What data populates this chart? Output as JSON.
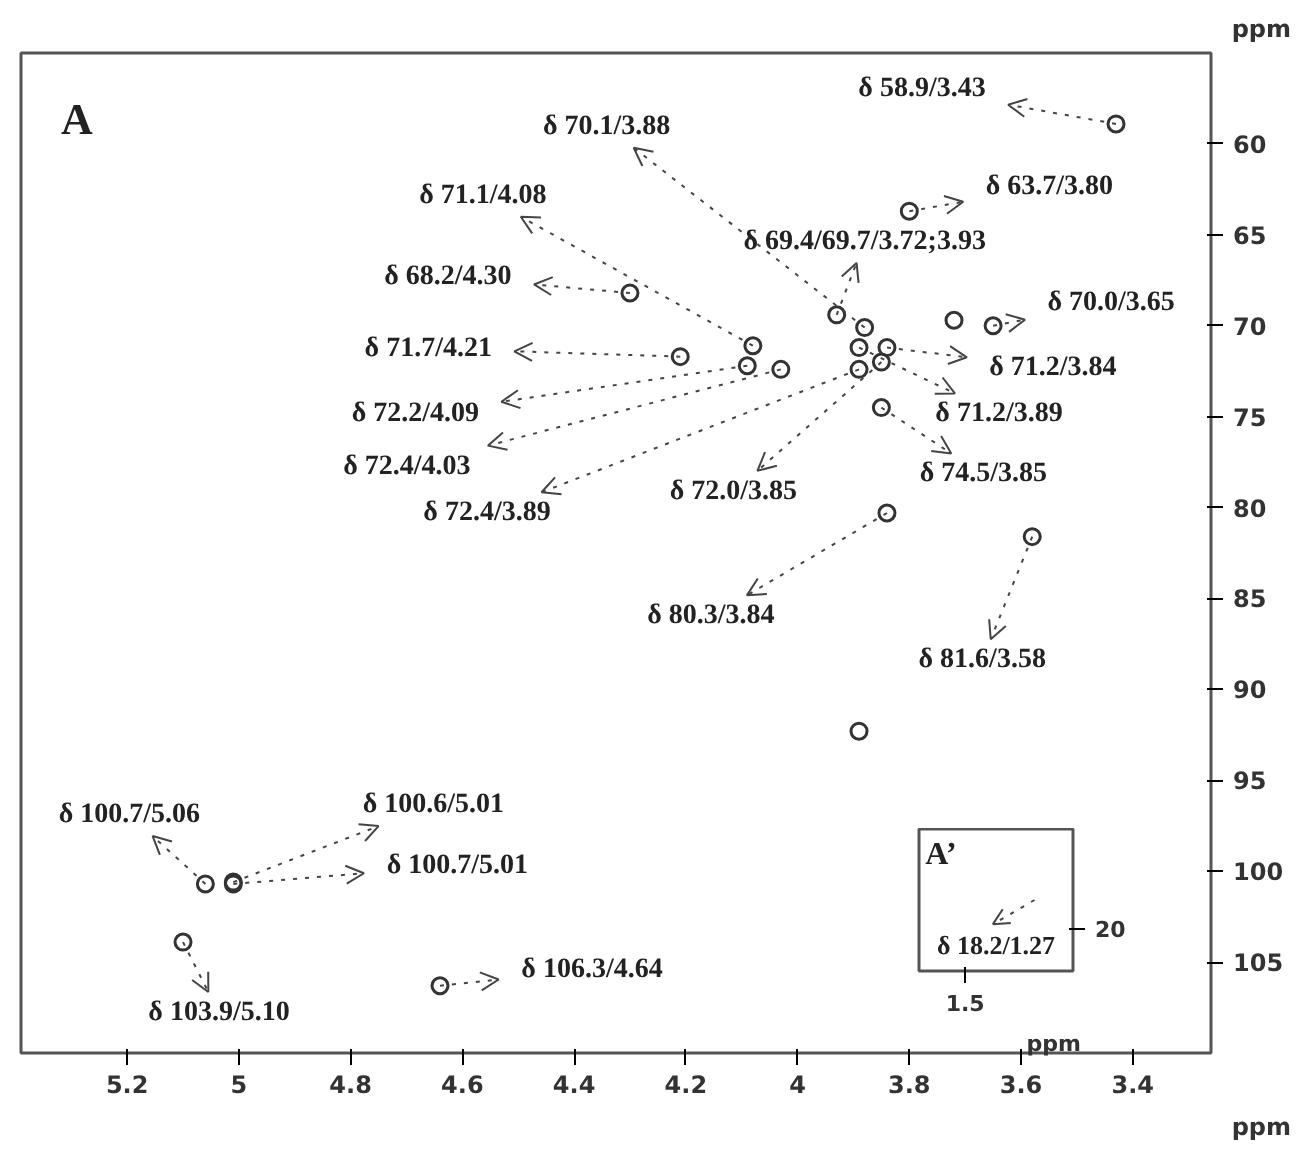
{
  "chart_data": [
    {
      "type": "scatter",
      "xlabel": "ppm",
      "ylabel": "ppm",
      "xlim": [
        5.39,
        3.26
      ],
      "ylim": [
        110,
        55
      ],
      "xticks": [
        5.2,
        5.0,
        4.8,
        4.6,
        4.4,
        4.2,
        4.0,
        3.8,
        3.6,
        3.4
      ],
      "yticks": [
        60,
        65,
        70,
        75,
        80,
        85,
        90,
        95,
        100,
        105
      ],
      "grid": false,
      "marker": "circle",
      "series": [
        {
          "color": "#333333",
          "x": [
            3.43,
            3.88,
            4.08,
            4.3,
            4.21,
            4.09,
            4.03,
            3.89,
            3.93,
            3.72,
            3.8,
            3.65,
            3.84,
            3.89,
            3.85,
            3.85,
            3.84,
            3.58,
            5.06,
            5.01,
            5.01,
            5.1,
            4.64,
            3.89
          ],
          "values": [
            58.9,
            70.1,
            71.1,
            68.2,
            71.7,
            72.2,
            72.4,
            72.4,
            69.4,
            69.7,
            63.7,
            70.0,
            71.2,
            71.2,
            74.5,
            72.0,
            80.3,
            81.6,
            100.7,
            100.6,
            100.7,
            103.9,
            106.3,
            92.3
          ]
        }
      ],
      "annotations": [
        "A",
        {
          "text": "δ 58.9/3.43",
          "x": 3.43,
          "y": 58.9
        },
        {
          "text": "δ 70.1/3.88",
          "x": 3.88,
          "y": 70.1
        },
        {
          "text": "δ 71.1/4.08",
          "x": 4.08,
          "y": 71.1
        },
        {
          "text": "δ 68.2/4.30",
          "x": 4.3,
          "y": 68.2
        },
        {
          "text": "δ 71.7/4.21",
          "x": 4.21,
          "y": 71.7
        },
        {
          "text": "δ 72.2/4.09",
          "x": 4.09,
          "y": 72.2
        },
        {
          "text": "δ 72.4/4.03",
          "x": 4.03,
          "y": 72.4
        },
        {
          "text": "δ 72.4/3.89",
          "x": 3.89,
          "y": 72.4
        },
        {
          "text": "δ 69.4/69.7/3.72;3.93",
          "x": 3.93,
          "y": 69.4
        },
        {
          "text": "δ 63.7/3.80",
          "x": 3.8,
          "y": 63.7
        },
        {
          "text": "δ 70.0/3.65",
          "x": 3.65,
          "y": 70.0
        },
        {
          "text": "δ 71.2/3.84",
          "x": 3.84,
          "y": 71.2
        },
        {
          "text": "δ 71.2/3.89",
          "x": 3.89,
          "y": 71.2
        },
        {
          "text": "δ 74.5/3.85",
          "x": 3.85,
          "y": 74.5
        },
        {
          "text": "δ 72.0/3.85",
          "x": 3.85,
          "y": 72.0
        },
        {
          "text": "δ 80.3/3.84",
          "x": 3.84,
          "y": 80.3
        },
        {
          "text": "δ 81.6/3.58",
          "x": 3.58,
          "y": 81.6
        },
        {
          "text": "δ 100.7/5.06",
          "x": 5.06,
          "y": 100.7
        },
        {
          "text": "δ 100.6/5.01",
          "x": 5.01,
          "y": 100.6
        },
        {
          "text": "δ 100.7/5.01",
          "x": 5.01,
          "y": 100.7
        },
        {
          "text": "δ 103.9/5.10",
          "x": 5.1,
          "y": 103.9
        },
        {
          "text": "δ 106.3/4.64",
          "x": 4.64,
          "y": 106.3
        }
      ]
    },
    {
      "type": "other",
      "xlabel": "ppm",
      "annotations": [
        "A’",
        "δ 18.2/1.27",
        "1.5",
        "20"
      ]
    }
  ]
}
